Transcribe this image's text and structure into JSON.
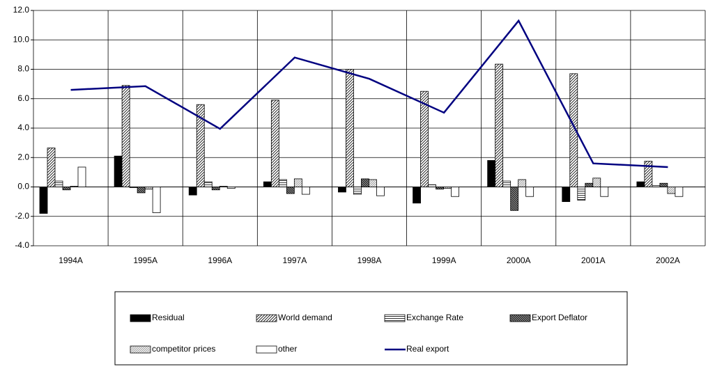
{
  "chart_data": {
    "type": "bar-line",
    "categories": [
      "1994A",
      "1995A",
      "1996A",
      "1997A",
      "1998A",
      "1999A",
      "2000A",
      "2001A",
      "2002A"
    ],
    "series": [
      {
        "name": "Residual",
        "color": "#000000",
        "pattern": "solid",
        "values": [
          -1.8,
          2.1,
          -0.55,
          0.35,
          -0.35,
          -1.1,
          1.8,
          -1.0,
          0.35
        ]
      },
      {
        "name": "World demand",
        "color": "#000000",
        "pattern": "diagonal",
        "values": [
          2.65,
          6.9,
          5.6,
          5.9,
          8.0,
          6.5,
          8.35,
          7.7,
          1.75
        ]
      },
      {
        "name": "Exchange Rate",
        "color": "#000000",
        "pattern": "horizontal",
        "values": [
          0.4,
          -0.05,
          0.35,
          0.5,
          -0.5,
          0.15,
          0.4,
          -0.9,
          0.1
        ]
      },
      {
        "name": "Export Deflator",
        "color": "#000000",
        "pattern": "dense-diagonal",
        "values": [
          -0.2,
          -0.4,
          -0.2,
          -0.45,
          0.55,
          -0.15,
          -1.6,
          0.25,
          0.25
        ]
      },
      {
        "name": "competitor prices",
        "color": "#000000",
        "pattern": "light-diagonal",
        "values": [
          0.05,
          -0.15,
          0.05,
          0.55,
          0.5,
          -0.1,
          0.5,
          0.6,
          -0.45
        ]
      },
      {
        "name": "other",
        "color": "#000000",
        "pattern": "none",
        "values": [
          1.35,
          -1.75,
          -0.1,
          -0.5,
          -0.6,
          -0.65,
          -0.65,
          -0.65,
          -0.65
        ]
      },
      {
        "name": "Real export",
        "color": "#000080",
        "kind": "line",
        "values": [
          6.6,
          6.85,
          3.95,
          8.8,
          7.35,
          5.05,
          11.3,
          1.6,
          1.35
        ]
      }
    ],
    "ylim": [
      -4,
      12
    ],
    "yticks": [
      {
        "value": -4,
        "label": "-4.0"
      },
      {
        "value": -2,
        "label": "-2.0"
      },
      {
        "value": 0,
        "label": "0.0"
      },
      {
        "value": 2,
        "label": "2.0"
      },
      {
        "value": 4,
        "label": "4.0"
      },
      {
        "value": 6,
        "label": "6.0"
      },
      {
        "value": 8,
        "label": "8.0"
      },
      {
        "value": 10,
        "label": "10.0"
      },
      {
        "value": 12,
        "label": "12.0"
      }
    ],
    "grid": true,
    "legend": "bottom"
  }
}
